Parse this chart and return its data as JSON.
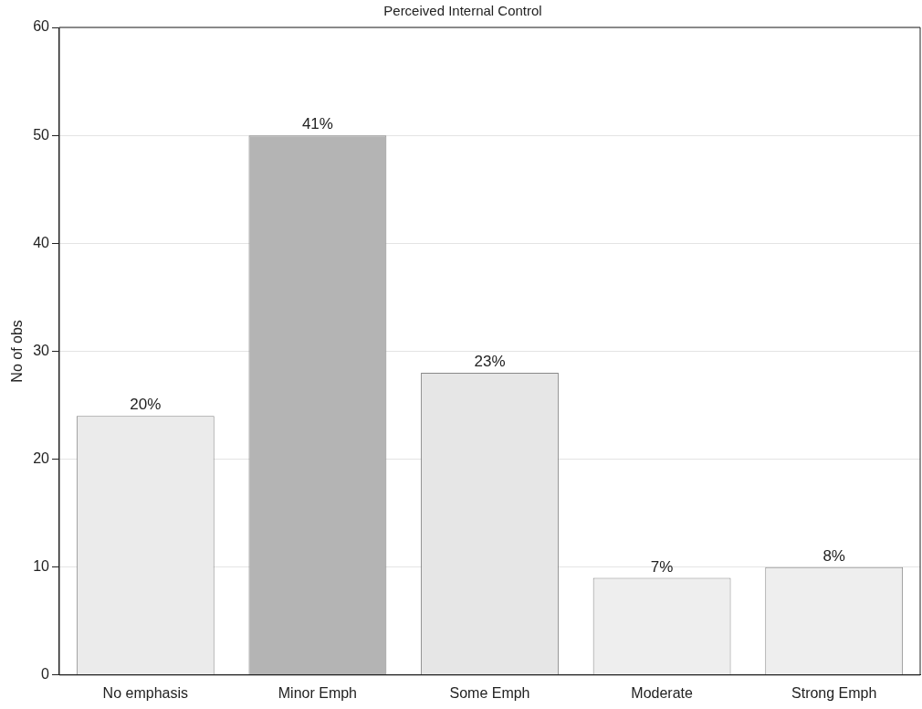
{
  "chart_data": {
    "type": "bar",
    "title": "Perceived Internal Control",
    "ylabel": "No of obs",
    "categories": [
      "No emphasis",
      "Minor Emph",
      "Some Emph",
      "Moderate",
      "Strong Emph"
    ],
    "values": [
      24,
      50,
      28,
      9,
      10
    ],
    "colors": [
      "#ebebeb",
      "#b4b4b4",
      "#e6e6e6",
      "#eeeeee",
      "#eeeeee"
    ],
    "annotations": [
      {
        "text": "20%",
        "x": "No emphasis",
        "y": 24
      },
      {
        "text": "41%",
        "x": "Minor Emph",
        "y": 50
      },
      {
        "text": "23%",
        "x": "Some Emph",
        "y": 28
      },
      {
        "text": "7%",
        "x": "Moderate",
        "y": 9
      },
      {
        "text": "8%",
        "x": "Strong Emph",
        "y": 10
      }
    ],
    "ylim": [
      0,
      60
    ],
    "yticks": [
      0,
      10,
      20,
      30,
      40,
      50,
      60
    ],
    "grid": "y",
    "legend": false
  }
}
